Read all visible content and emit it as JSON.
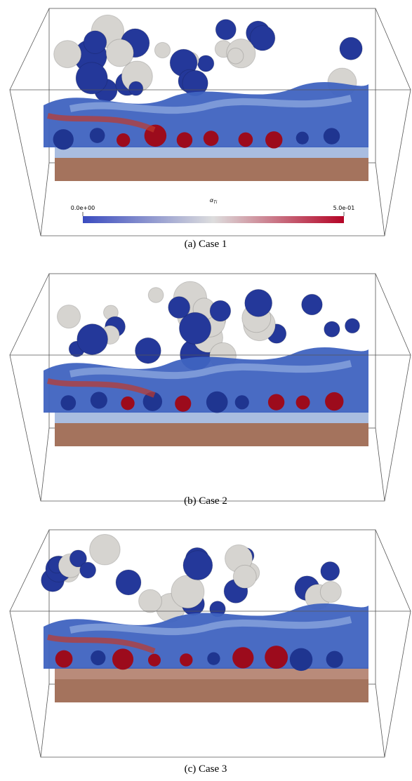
{
  "panels": [
    {
      "caption": "(a) Case 1"
    },
    {
      "caption": "(b) Case 2"
    },
    {
      "caption": "(c) Case 3"
    }
  ],
  "colorbar": {
    "symbol": "α",
    "subscript": "Ti",
    "range": [
      0,
      0.5
    ],
    "ticks": [
      {
        "value": 0,
        "label": "0.0e+00"
      },
      {
        "value": 0.5,
        "label": "5.0e-01"
      }
    ]
  }
}
